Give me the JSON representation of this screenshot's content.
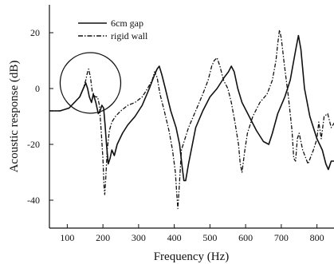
{
  "chart_data": {
    "type": "line",
    "title": "",
    "xlabel": "Frequency (Hz)",
    "ylabel": "Acoustic response (dB)",
    "xlim": [
      50,
      850
    ],
    "ylim": [
      -50,
      30
    ],
    "xticks": [
      100,
      200,
      300,
      400,
      500,
      600,
      700,
      800
    ],
    "yticks": [
      -40,
      -20,
      0,
      20
    ],
    "grid": false,
    "legend_position": "top-left",
    "series": [
      {
        "name": "6cm gap",
        "style": "solid",
        "color": "#111111",
        "x": [
          50,
          80,
          105,
          120,
          135,
          145,
          152,
          157,
          162,
          168,
          173,
          180,
          187,
          192,
          197,
          202,
          206,
          210,
          215,
          220,
          225,
          232,
          240,
          255,
          270,
          290,
          310,
          330,
          345,
          352,
          358,
          365,
          375,
          390,
          405,
          415,
          422,
          427,
          432,
          440,
          460,
          480,
          500,
          520,
          540,
          552,
          560,
          568,
          578,
          590,
          610,
          630,
          650,
          665,
          675,
          690,
          710,
          725,
          735,
          742,
          748,
          755,
          765,
          780,
          800,
          815,
          825,
          832,
          840,
          850
        ],
        "y": [
          -8,
          -8,
          -7,
          -5,
          -3,
          0,
          2,
          0,
          -3,
          -5,
          -2,
          -5,
          -9,
          -8,
          -6,
          -7,
          -13,
          -20,
          -27,
          -25,
          -22,
          -24,
          -20,
          -16,
          -13,
          -10,
          -6,
          0,
          5,
          7,
          8,
          5,
          0,
          -8,
          -14,
          -20,
          -28,
          -33,
          -33,
          -27,
          -14,
          -8,
          -3,
          0,
          4,
          6,
          8,
          6,
          0,
          -5,
          -10,
          -15,
          -19,
          -20,
          -16,
          -9,
          -3,
          3,
          10,
          15,
          19,
          14,
          0,
          -10,
          -18,
          -22,
          -27,
          -29,
          -26,
          -26
        ]
      },
      {
        "name": "rigid wall",
        "style": "dash-dot",
        "color": "#111111",
        "x": [
          50,
          80,
          105,
          120,
          135,
          145,
          152,
          157,
          160,
          165,
          170,
          178,
          185,
          190,
          195,
          200,
          203,
          205,
          208,
          212,
          218,
          225,
          235,
          250,
          270,
          290,
          310,
          325,
          338,
          345,
          352,
          360,
          372,
          385,
          395,
          403,
          407,
          410,
          414,
          420,
          440,
          460,
          480,
          495,
          505,
          512,
          520,
          528,
          538,
          550,
          560,
          570,
          580,
          585,
          590,
          598,
          605,
          620,
          640,
          660,
          675,
          685,
          690,
          695,
          700,
          708,
          720,
          730,
          735,
          740,
          745,
          750,
          760,
          775,
          790,
          800,
          805,
          812,
          820,
          830,
          840,
          850
        ],
        "y": [
          -8,
          -8,
          -7,
          -5,
          -3,
          0,
          3,
          6,
          7,
          4,
          -1,
          -3,
          -3,
          -6,
          -15,
          -25,
          -35,
          -38,
          -32,
          -22,
          -15,
          -12,
          -10,
          -8,
          -6,
          -5,
          -3,
          0,
          3,
          6,
          4,
          -2,
          -8,
          -15,
          -22,
          -30,
          -38,
          -43,
          -35,
          -22,
          -14,
          -8,
          -2,
          3,
          8,
          10,
          11,
          8,
          3,
          0,
          -5,
          -12,
          -20,
          -27,
          -30,
          -22,
          -16,
          -10,
          -5,
          -2,
          3,
          10,
          16,
          21,
          18,
          9,
          -3,
          -15,
          -25,
          -26,
          -18,
          -16,
          -22,
          -27,
          -22,
          -18,
          -12,
          -18,
          -10,
          -9,
          -14,
          -12
        ]
      }
    ],
    "annotations": [
      {
        "type": "circle",
        "center_x": 165,
        "center_y": 2,
        "note": "circled region"
      }
    ]
  }
}
